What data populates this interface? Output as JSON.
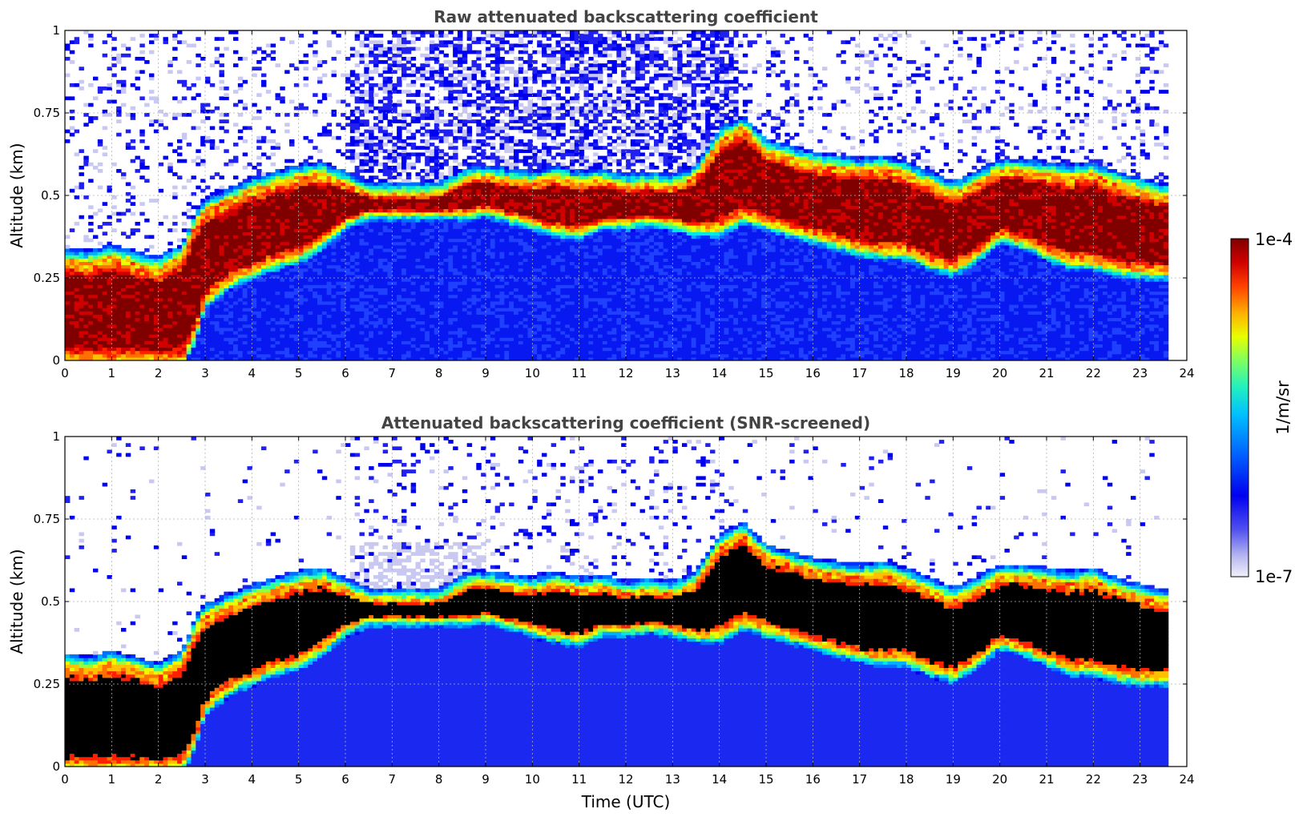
{
  "chart_data": [
    {
      "type": "heatmap",
      "title": "Raw attenuated backscattering coefficient",
      "xlabel": "",
      "ylabel": "Altitude (km)",
      "xlim": [
        0,
        24
      ],
      "ylim": [
        0,
        1
      ],
      "x_ticks": [
        "0",
        "1",
        "2",
        "3",
        "4",
        "5",
        "6",
        "7",
        "8",
        "9",
        "10",
        "11",
        "12",
        "13",
        "14",
        "15",
        "16",
        "17",
        "18",
        "19",
        "20",
        "21",
        "22",
        "23",
        "24"
      ],
      "y_ticks": [
        "0",
        "0.25",
        "0.5",
        "0.75",
        "1"
      ],
      "grid": true,
      "data_end_time": 23.6,
      "noise_level": 0.85,
      "aerosol_layer_top_km": [
        [
          0.0,
          0.3
        ],
        [
          0.5,
          0.29
        ],
        [
          1.0,
          0.31
        ],
        [
          1.5,
          0.29
        ],
        [
          2.0,
          0.27
        ],
        [
          2.5,
          0.31
        ],
        [
          2.8,
          0.41
        ],
        [
          3.0,
          0.45
        ],
        [
          3.5,
          0.48
        ],
        [
          4.0,
          0.51
        ],
        [
          4.5,
          0.53
        ],
        [
          5.0,
          0.55
        ],
        [
          5.5,
          0.56
        ],
        [
          6.0,
          0.53
        ],
        [
          6.5,
          0.5
        ],
        [
          7.0,
          0.5
        ],
        [
          8.0,
          0.5
        ],
        [
          8.7,
          0.55
        ],
        [
          9.0,
          0.55
        ],
        [
          9.5,
          0.54
        ],
        [
          10.0,
          0.53
        ],
        [
          10.5,
          0.55
        ],
        [
          11.0,
          0.53
        ],
        [
          11.5,
          0.54
        ],
        [
          12.0,
          0.52
        ],
        [
          12.5,
          0.53
        ],
        [
          13.0,
          0.52
        ],
        [
          13.5,
          0.55
        ],
        [
          14.0,
          0.66
        ],
        [
          14.5,
          0.7
        ],
        [
          15.0,
          0.63
        ],
        [
          15.5,
          0.61
        ],
        [
          16.0,
          0.59
        ],
        [
          16.5,
          0.58
        ],
        [
          17.0,
          0.57
        ],
        [
          17.5,
          0.58
        ],
        [
          18.0,
          0.56
        ],
        [
          18.5,
          0.53
        ],
        [
          19.0,
          0.5
        ],
        [
          19.5,
          0.53
        ],
        [
          20.0,
          0.57
        ],
        [
          20.5,
          0.57
        ],
        [
          21.0,
          0.56
        ],
        [
          21.5,
          0.55
        ],
        [
          22.0,
          0.56
        ],
        [
          22.5,
          0.53
        ],
        [
          23.0,
          0.51
        ],
        [
          23.6,
          0.49
        ]
      ],
      "aerosol_layer_bottom_km": [
        [
          0.0,
          0.0
        ],
        [
          2.5,
          0.0
        ],
        [
          2.8,
          0.08
        ],
        [
          3.0,
          0.18
        ],
        [
          3.5,
          0.24
        ],
        [
          4.0,
          0.27
        ],
        [
          4.5,
          0.3
        ],
        [
          5.0,
          0.32
        ],
        [
          5.5,
          0.36
        ],
        [
          6.0,
          0.42
        ],
        [
          6.5,
          0.45
        ],
        [
          7.0,
          0.45
        ],
        [
          8.0,
          0.45
        ],
        [
          8.7,
          0.45
        ],
        [
          9.0,
          0.46
        ],
        [
          9.5,
          0.44
        ],
        [
          10.0,
          0.42
        ],
        [
          10.5,
          0.4
        ],
        [
          11.0,
          0.39
        ],
        [
          11.5,
          0.42
        ],
        [
          12.0,
          0.42
        ],
        [
          12.5,
          0.43
        ],
        [
          13.0,
          0.42
        ],
        [
          13.5,
          0.4
        ],
        [
          14.0,
          0.4
        ],
        [
          14.5,
          0.44
        ],
        [
          15.0,
          0.42
        ],
        [
          15.5,
          0.4
        ],
        [
          16.0,
          0.38
        ],
        [
          16.5,
          0.36
        ],
        [
          17.0,
          0.34
        ],
        [
          17.5,
          0.33
        ],
        [
          18.0,
          0.33
        ],
        [
          18.5,
          0.3
        ],
        [
          19.0,
          0.28
        ],
        [
          19.5,
          0.32
        ],
        [
          20.0,
          0.38
        ],
        [
          20.5,
          0.36
        ],
        [
          21.0,
          0.33
        ],
        [
          21.5,
          0.3
        ],
        [
          22.0,
          0.3
        ],
        [
          22.5,
          0.28
        ],
        [
          23.0,
          0.27
        ],
        [
          23.6,
          0.27
        ]
      ]
    },
    {
      "type": "heatmap",
      "title": "Attenuated backscattering coefficient (SNR-screened)",
      "xlabel": "Time (UTC)",
      "ylabel": "Altitude (km)",
      "xlim": [
        0,
        24
      ],
      "ylim": [
        0,
        1
      ],
      "x_ticks": [
        "0",
        "1",
        "2",
        "3",
        "4",
        "5",
        "6",
        "7",
        "8",
        "9",
        "10",
        "11",
        "12",
        "13",
        "14",
        "15",
        "16",
        "17",
        "18",
        "19",
        "20",
        "21",
        "22",
        "23",
        "24"
      ],
      "y_ticks": [
        "0",
        "0.25",
        "0.5",
        "0.75",
        "1"
      ],
      "grid": true,
      "data_end_time": 23.6,
      "noise_level": 0.15,
      "saturated_color": "#000000"
    }
  ],
  "colorbar": {
    "label": "1/m/sr",
    "max_label": "1e-4",
    "min_label": "1e-7",
    "colors": [
      "#e8e8f8",
      "#c8c8f0",
      "#9a9aee",
      "#6060f0",
      "#2020f0",
      "#0000f0",
      "#0030ff",
      "#0070ff",
      "#00b0ff",
      "#00e8e0",
      "#30ffa0",
      "#90ff40",
      "#e8ff00",
      "#ffc000",
      "#ff7000",
      "#ff2000",
      "#d00000",
      "#800000"
    ]
  }
}
